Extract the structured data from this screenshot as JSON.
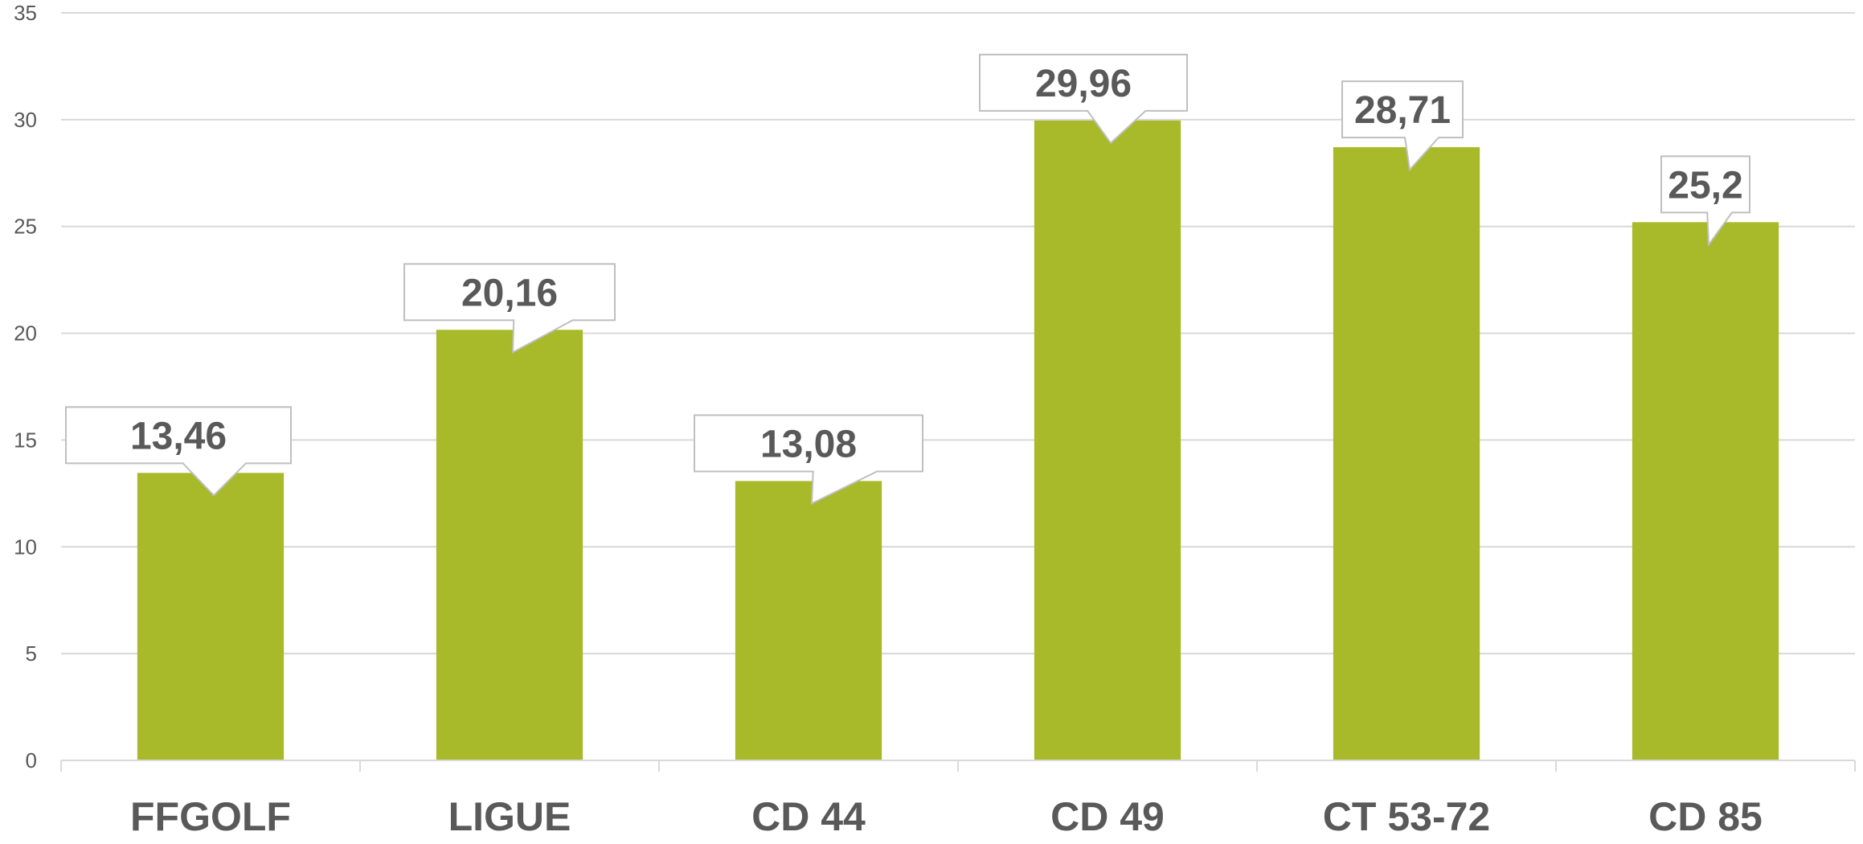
{
  "chart_data": {
    "type": "bar",
    "title": "",
    "xlabel": "",
    "ylabel": "",
    "categories": [
      "FFGOLF",
      "LIGUE",
      "CD 44",
      "CD 49",
      "CT 53-72",
      "CD 85"
    ],
    "values": [
      13.46,
      20.16,
      13.08,
      29.96,
      28.71,
      25.2
    ],
    "value_labels": [
      "13,46",
      "20,16",
      "13,08",
      "29,96",
      "28,71",
      "25,2"
    ],
    "ylim": [
      0,
      35
    ],
    "y_ticks": [
      0,
      5,
      10,
      15,
      20,
      25,
      30,
      35
    ],
    "grid": true,
    "legend": "none",
    "bar_color": "#a8b929"
  }
}
